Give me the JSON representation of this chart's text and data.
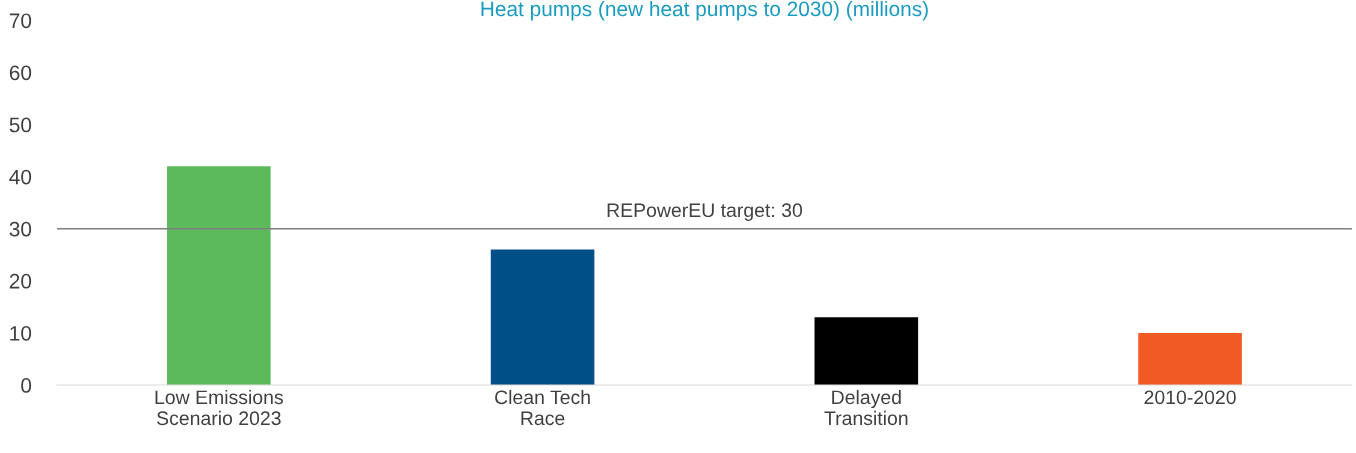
{
  "chart_data": {
    "type": "bar",
    "title": "Heat pumps (new heat pumps to 2030) (millions)",
    "categories": [
      "Low Emissions\nScenario 2023",
      "Clean Tech\nRace",
      "Delayed\nTransition",
      "2010-2020"
    ],
    "values": [
      42,
      26,
      13,
      10
    ],
    "colors": [
      "#5cba5c",
      "#005087",
      "#000000",
      "#f15a22"
    ],
    "ylim": [
      0,
      70
    ],
    "yticks": [
      0,
      10,
      20,
      30,
      40,
      50,
      60,
      70
    ],
    "grid": false,
    "legend": false,
    "ref_lines": [
      {
        "axis": "y",
        "value": 30,
        "label": "REPowerEU target: 30",
        "color": "#7f7f7f"
      }
    ]
  }
}
